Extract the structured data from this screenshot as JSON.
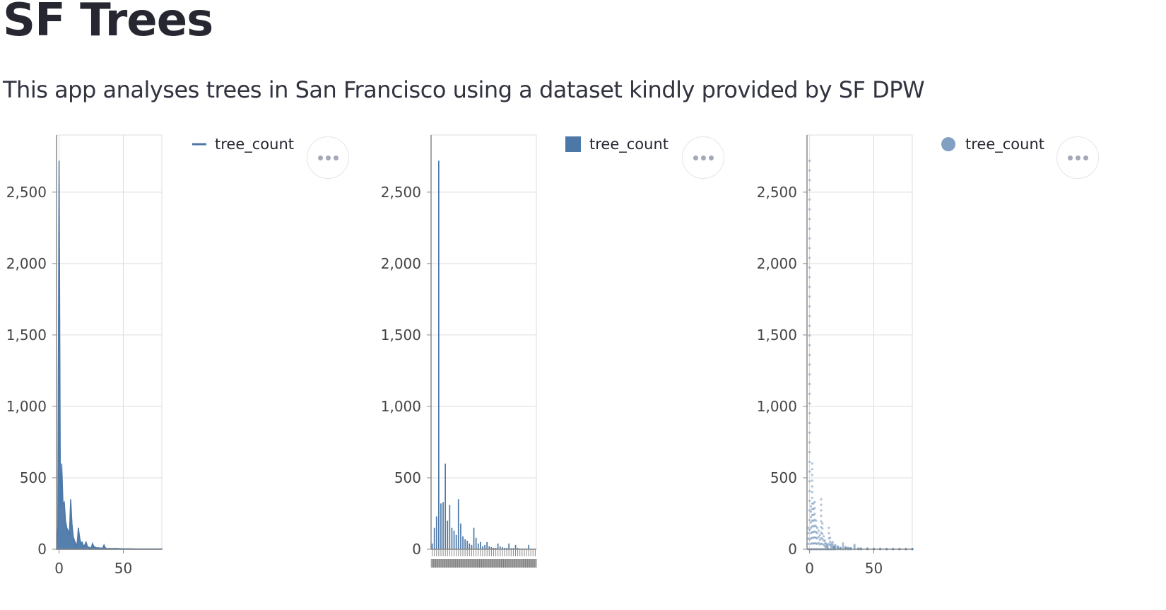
{
  "header": {
    "title": "SF Trees",
    "subtitle": "This app analyses trees in San Francisco using a dataset kindly provided by SF DPW"
  },
  "colors": {
    "series": "#4c78a8",
    "grid": "#dddddd",
    "axis": "#888888",
    "text": "#262730"
  },
  "icons": {
    "menu": "more-horizontal-icon"
  },
  "chart_data": [
    {
      "type": "area",
      "legend": {
        "label": "tree_count",
        "symbol": "line",
        "position": "top-right"
      },
      "ylim": [
        0,
        2900
      ],
      "yticks": [
        0,
        500,
        1000,
        1500,
        2000,
        2500
      ],
      "xlim": [
        -2,
        80
      ],
      "xticks": [
        0,
        50
      ],
      "xticklabels": [
        "0",
        "50"
      ],
      "grid": true,
      "series": [
        {
          "name": "tree_count",
          "x": [
            -2,
            -1,
            0,
            1,
            2,
            3,
            4,
            5,
            6,
            7,
            8,
            9,
            10,
            11,
            12,
            13,
            14,
            15,
            16,
            17,
            18,
            19,
            20,
            21,
            22,
            23,
            24,
            25,
            26,
            27,
            28,
            29,
            30,
            31,
            32,
            33,
            34,
            35,
            36,
            37,
            38,
            39,
            40,
            45,
            50,
            55,
            60,
            65,
            70,
            75,
            80
          ],
          "values": [
            0,
            150,
            2720,
            300,
            600,
            320,
            330,
            200,
            150,
            130,
            100,
            350,
            180,
            90,
            60,
            40,
            30,
            150,
            80,
            40,
            50,
            20,
            30,
            50,
            20,
            15,
            10,
            10,
            40,
            20,
            15,
            10,
            10,
            10,
            8,
            8,
            8,
            30,
            10,
            5,
            5,
            5,
            5,
            5,
            3,
            3,
            2,
            2,
            2,
            2,
            2
          ]
        }
      ]
    },
    {
      "type": "bar",
      "legend": {
        "label": "tree_count",
        "symbol": "square",
        "position": "top-right"
      },
      "ylim": [
        0,
        2900
      ],
      "yticks": [
        0,
        500,
        1000,
        1500,
        2000,
        2500
      ],
      "grid": true,
      "series": [
        {
          "name": "tree_count",
          "values": [
            40,
            150,
            230,
            2720,
            320,
            330,
            600,
            200,
            310,
            150,
            130,
            100,
            350,
            180,
            90,
            70,
            60,
            40,
            30,
            150,
            80,
            40,
            50,
            20,
            30,
            50,
            20,
            15,
            10,
            10,
            40,
            20,
            15,
            10,
            10,
            40,
            8,
            8,
            30,
            10,
            5,
            5,
            5,
            5,
            30,
            3,
            2,
            2
          ]
        }
      ]
    },
    {
      "type": "scatter",
      "legend": {
        "label": "tree_count",
        "symbol": "circle",
        "position": "top-right"
      },
      "ylim": [
        0,
        2900
      ],
      "yticks": [
        0,
        500,
        1000,
        1500,
        2000,
        2500
      ],
      "xlim": [
        -2,
        80
      ],
      "xticks": [
        0,
        50
      ],
      "xticklabels": [
        "0",
        "50"
      ],
      "grid": true,
      "series": [
        {
          "name": "tree_count",
          "x": [
            -1,
            0,
            1,
            2,
            3,
            4,
            5,
            6,
            7,
            8,
            9,
            10,
            11,
            12,
            13,
            14,
            15,
            16,
            17,
            18,
            19,
            20,
            22,
            24,
            26,
            28,
            30,
            32,
            35,
            38,
            40,
            45,
            50,
            55,
            60,
            65,
            70,
            75,
            80
          ],
          "values": [
            150,
            2720,
            300,
            600,
            320,
            330,
            200,
            150,
            130,
            100,
            350,
            180,
            90,
            60,
            40,
            30,
            150,
            80,
            40,
            50,
            20,
            30,
            20,
            10,
            40,
            15,
            10,
            8,
            30,
            5,
            5,
            5,
            3,
            3,
            2,
            2,
            2,
            2,
            2
          ]
        }
      ]
    }
  ]
}
